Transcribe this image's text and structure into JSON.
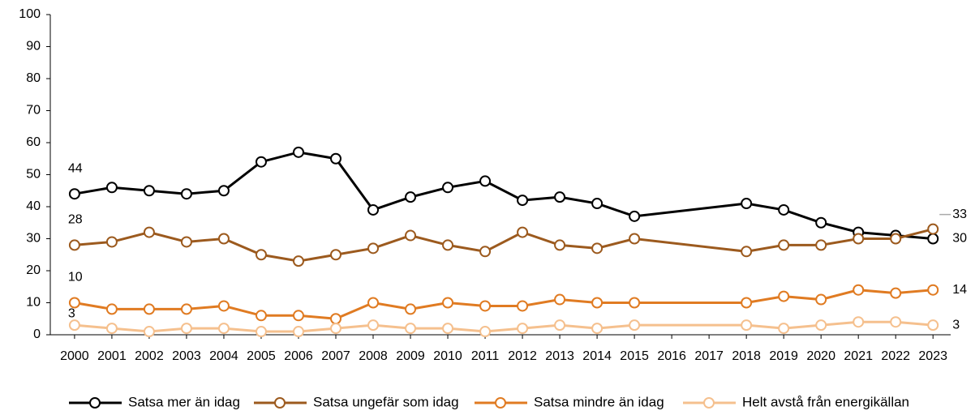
{
  "chart_data": {
    "type": "line",
    "x": [
      2000,
      2001,
      2002,
      2003,
      2004,
      2005,
      2006,
      2007,
      2008,
      2009,
      2010,
      2011,
      2012,
      2013,
      2014,
      2015,
      2018,
      2019,
      2020,
      2021,
      2022,
      2023
    ],
    "xlim": [
      1999.35,
      2023.43
    ],
    "xticks": [
      2000,
      2001,
      2002,
      2003,
      2004,
      2005,
      2006,
      2007,
      2008,
      2009,
      2010,
      2011,
      2012,
      2013,
      2014,
      2015,
      2016,
      2017,
      2018,
      2019,
      2020,
      2021,
      2022,
      2023
    ],
    "ylim": [
      0,
      100
    ],
    "yticks": [
      0,
      10,
      20,
      30,
      40,
      50,
      60,
      70,
      80,
      90,
      100
    ],
    "grid": false,
    "legend": "bottom",
    "series": [
      {
        "name": "Satsa mer än idag",
        "color": "#000000",
        "values": [
          44,
          46,
          45,
          44,
          45,
          54,
          57,
          55,
          39,
          43,
          46,
          48,
          42,
          43,
          41,
          37,
          41,
          39,
          35,
          32,
          31,
          30
        ]
      },
      {
        "name": "Satsa ungefär som idag",
        "color": "#9c5a1e",
        "values": [
          28,
          29,
          32,
          29,
          30,
          25,
          23,
          25,
          27,
          31,
          28,
          26,
          32,
          28,
          27,
          30,
          26,
          28,
          28,
          30,
          30,
          33
        ]
      },
      {
        "name": "Satsa mindre än idag",
        "color": "#e07b22",
        "values": [
          10,
          8,
          8,
          8,
          9,
          6,
          6,
          5,
          10,
          8,
          10,
          9,
          9,
          11,
          10,
          10,
          10,
          12,
          11,
          14,
          13,
          14
        ]
      },
      {
        "name": "Helt avstå från energikällan",
        "color": "#f5c08e",
        "values": [
          3,
          2,
          1,
          2,
          2,
          1,
          1,
          2,
          3,
          2,
          2,
          1,
          2,
          3,
          2,
          3,
          3,
          2,
          3,
          4,
          4,
          3
        ]
      }
    ]
  }
}
